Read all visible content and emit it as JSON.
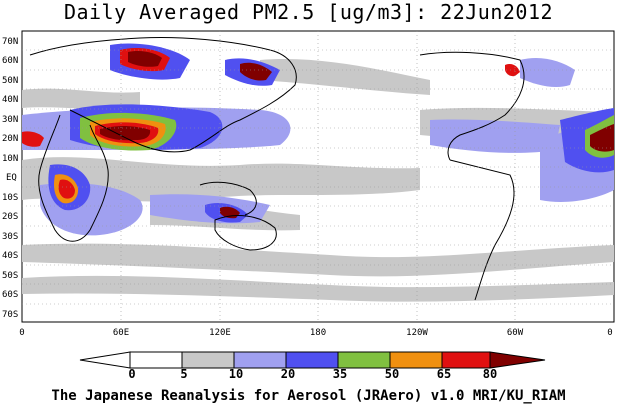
{
  "title": "Daily Averaged PM2.5 [ug/m3]: 22Jun2012",
  "lat_ticks": [
    "70N",
    "60N",
    "50N",
    "40N",
    "30N",
    "20N",
    "10N",
    "EQ",
    "10S",
    "20S",
    "30S",
    "40S",
    "50S",
    "60S",
    "70S"
  ],
  "lon_ticks": [
    "0",
    "60E",
    "120E",
    "180",
    "120W",
    "60W",
    "0"
  ],
  "colorbar": {
    "levels": [
      "0",
      "5",
      "10",
      "20",
      "35",
      "50",
      "65",
      "80"
    ],
    "colors": [
      "#ffffff",
      "#c8c8c8",
      "#a0a0f0",
      "#5050f0",
      "#80c040",
      "#f09010",
      "#e01010",
      "#800000"
    ]
  },
  "footer": "The Japanese Reanalysis for Aerosol (JRAero) v1.0 MRI/KU_RIAM"
}
